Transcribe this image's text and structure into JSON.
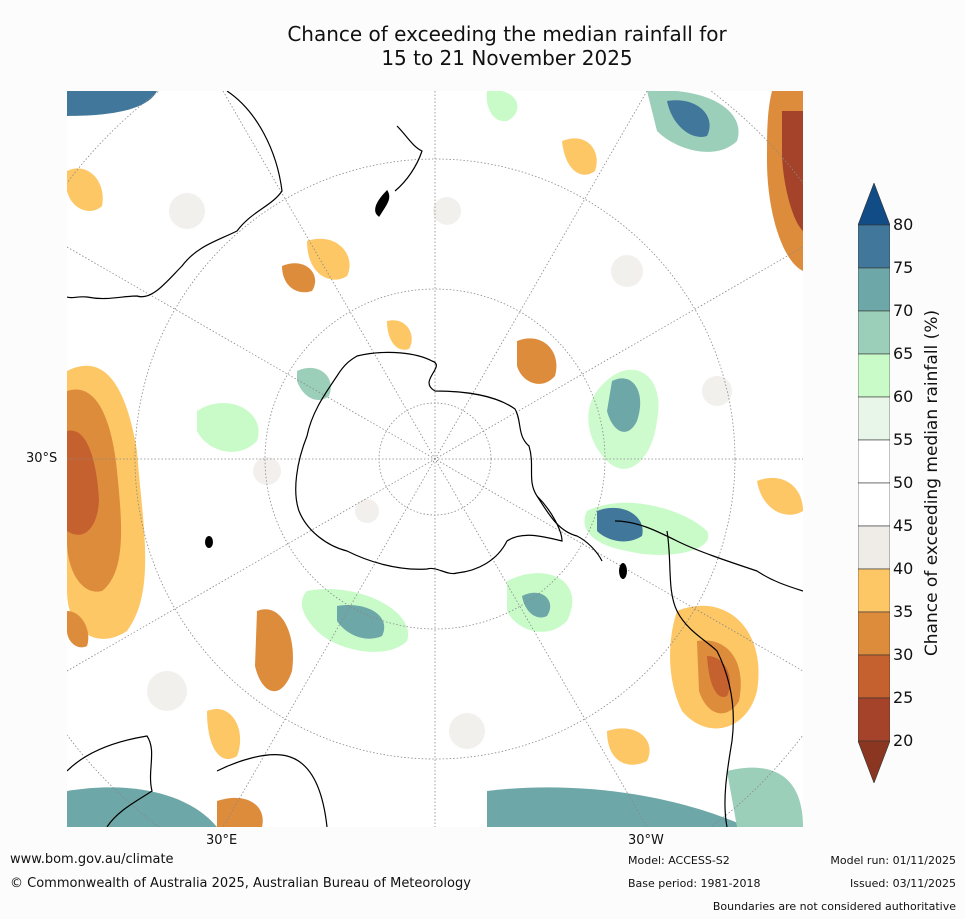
{
  "title_line1": "Chance of exceeding the median rainfall for",
  "title_line2": "15 to 21 November 2025",
  "map": {
    "projection": "south-polar-stereographic",
    "lat_label": "30°S",
    "lon_labels": [
      "30°E",
      "30°W"
    ]
  },
  "colorbar": {
    "label": "Chance of exceeding median rainfall (%)",
    "ticks": [
      "20",
      "25",
      "30",
      "35",
      "40",
      "45",
      "50",
      "55",
      "60",
      "65",
      "70",
      "75",
      "80"
    ],
    "colors": [
      "#a5432a",
      "#c5602f",
      "#dd8c3c",
      "#fdc766",
      "#efece8",
      "#ffffff",
      "#ffffff",
      "#e8f5e9",
      "#c9fbc9",
      "#9ccfb9",
      "#6ea7a8",
      "#41779a"
    ],
    "low_arrow_color": "#8a3620",
    "high_arrow_color": "#114c87"
  },
  "footer": {
    "url": "www.bom.gov.au/climate",
    "copyright": "© Commonwealth of Australia 2025, Australian Bureau of Meteorology",
    "model": "Model: ACCESS-S2",
    "base_period": "Base period: 1981-2018",
    "model_run": "Model run: 01/11/2025",
    "issued": "Issued: 03/11/2025",
    "disclaimer": "Boundaries are not considered authoritative"
  }
}
